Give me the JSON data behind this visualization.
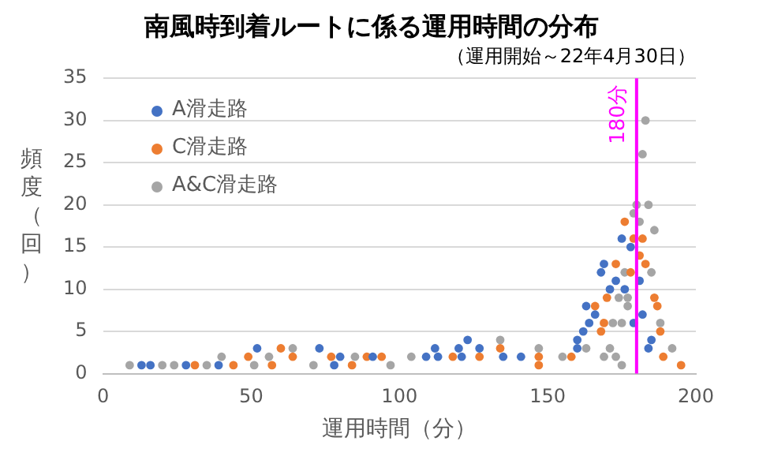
{
  "chart_data": {
    "type": "scatter",
    "title": "南風時到着ルートに係る運用時間の分布",
    "subtitle": "（運用開始～22年4月30日）",
    "xlabel": "運用時間（分）",
    "ylabel": "頻度（回）",
    "xlim": [
      0,
      200
    ],
    "xticks": [
      0,
      50,
      100,
      150,
      200
    ],
    "ylim": [
      0,
      35
    ],
    "yticks": [
      0,
      5,
      10,
      15,
      20,
      25,
      30,
      35
    ],
    "grid": "y",
    "legend": "top left",
    "marker": "circle",
    "ref_lines": [
      {
        "axis": "x",
        "value": 180,
        "label": "180分",
        "color": "#ff00ff"
      }
    ],
    "series": [
      {
        "name": "A滑走路",
        "color": "#4472c4",
        "x": [
          13,
          16,
          28,
          39,
          52,
          73,
          78,
          80,
          91,
          109,
          112,
          113,
          120,
          121,
          123,
          127,
          135,
          141,
          160,
          160,
          162,
          163,
          164,
          166,
          168,
          169,
          171,
          173,
          175,
          176,
          178,
          179,
          181,
          182,
          184,
          185
        ],
        "values": [
          1,
          1,
          1,
          1,
          3,
          3,
          1,
          2,
          2,
          2,
          3,
          2,
          3,
          2,
          4,
          3,
          2,
          2,
          4,
          3,
          5,
          8,
          6,
          7,
          12,
          13,
          10,
          11,
          16,
          10,
          15,
          6,
          11,
          7,
          3,
          4
        ]
      },
      {
        "name": "C滑走路",
        "color": "#ed7d31",
        "x": [
          31,
          44,
          49,
          57,
          60,
          64,
          77,
          84,
          89,
          94,
          118,
          127,
          134,
          147,
          147,
          158,
          166,
          168,
          169,
          170,
          173,
          176,
          178,
          179,
          181,
          182,
          183,
          186,
          187,
          188,
          189,
          195
        ],
        "values": [
          1,
          1,
          2,
          1,
          3,
          2,
          2,
          1,
          2,
          2,
          2,
          2,
          3,
          2,
          1,
          2,
          8,
          5,
          6,
          9,
          13,
          18,
          12,
          16,
          14,
          16,
          13,
          9,
          8,
          5,
          2,
          1
        ]
      },
      {
        "name": "A&C滑走路",
        "color": "#a5a5a5",
        "x": [
          9,
          20,
          24,
          35,
          40,
          51,
          56,
          64,
          71,
          85,
          97,
          104,
          134,
          147,
          155,
          163,
          169,
          171,
          172,
          173,
          174,
          175,
          175,
          176,
          177,
          177,
          179,
          180,
          181,
          182,
          183,
          184,
          185,
          186,
          188,
          192
        ],
        "values": [
          1,
          1,
          1,
          1,
          2,
          1,
          2,
          3,
          1,
          2,
          1,
          2,
          4,
          3,
          2,
          3,
          2,
          3,
          6,
          2,
          9,
          6,
          1,
          12,
          9,
          8,
          19,
          20,
          18,
          26,
          30,
          20,
          12,
          17,
          6,
          3
        ]
      }
    ]
  }
}
